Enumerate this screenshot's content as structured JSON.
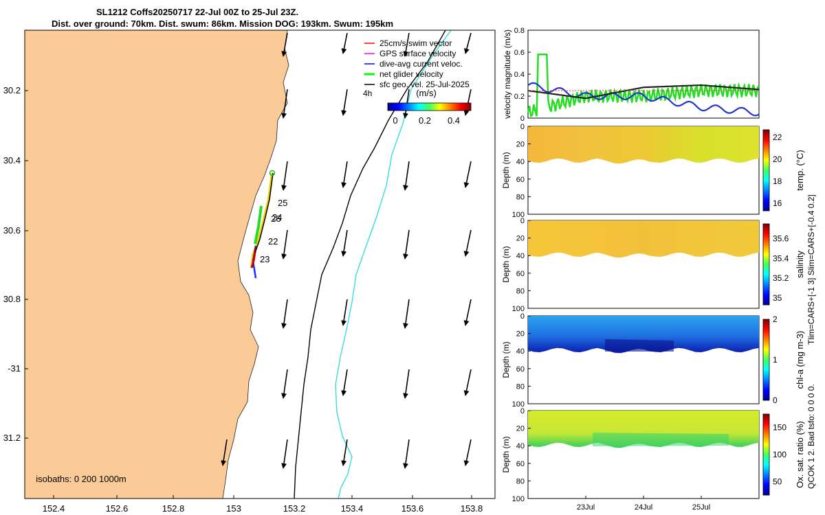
{
  "title_line1": "SL1212 Coffs20250717 22-Jul 00Z to 25-Jul 23Z.",
  "title_line2": "Dist. over ground: 70km. Dist. swum: 86km. Mission DOG: 193km. Swum: 195km",
  "map": {
    "lat_ticks": [
      "30.2",
      "30.4",
      "30.6",
      "30.8",
      "-31",
      "31.2"
    ],
    "lon_ticks": [
      "152.4",
      "152.6",
      "152.8",
      "153",
      "153.2",
      "153.4",
      "153.6",
      "153.8"
    ],
    "isobath_note": "isobaths: 0   200  1000m",
    "legend": [
      {
        "label": "25cm/s swim vector",
        "color": "#ff0000"
      },
      {
        "label": "GPS surface velocity",
        "color": "#ff00ff"
      },
      {
        "label": "dive-avg current veloc.",
        "color": "#0000ff"
      },
      {
        "label": "net glider velocity",
        "color": "#00ff00"
      },
      {
        "label": "sfc geo. vel. 25-Jul-2025",
        "color": "#000000"
      }
    ],
    "colorbar": {
      "label_4h": "4h",
      "units": "(m/s)",
      "ticks": [
        "0",
        "0.2",
        "0.4"
      ]
    },
    "day_labels": [
      "25",
      "24",
      "26",
      "22",
      "23"
    ],
    "colors": {
      "land": "#fbcb97",
      "isobath_200": "#000000",
      "isobath_1000": "#33dddd"
    }
  },
  "panels": {
    "velocity": {
      "ylabel": "velocity magnitude (m/s)",
      "yticks": [
        "0",
        "0.2",
        "0.4",
        "0.6",
        "0.8"
      ]
    },
    "temp": {
      "cb_label": "temp. (°C)",
      "cb_ticks": [
        "16",
        "18",
        "20",
        "22"
      ],
      "yticks": [
        "0",
        "20",
        "40",
        "60",
        "80",
        "100"
      ],
      "ylabel": "Depth (m)"
    },
    "salinity": {
      "cb_label": "salinity",
      "cb_ticks": [
        "35",
        "35.2",
        "35.4",
        "35.6"
      ],
      "yticks": [
        "0",
        "20",
        "40",
        "60",
        "80",
        "100"
      ],
      "ylabel": "Depth (m)"
    },
    "chla": {
      "cb_label": "chl-a  (mg m-3)",
      "cb_ticks": [
        "0",
        "1",
        "2"
      ],
      "yticks": [
        "0",
        "20",
        "40",
        "60",
        "80",
        "100"
      ],
      "ylabel": "Depth (m)"
    },
    "oxsat": {
      "cb_label": "Ox. sat. ratio (%)",
      "cb_ticks": [
        "50",
        "100",
        "150"
      ],
      "yticks": [
        "0",
        "20",
        "40",
        "60",
        "80",
        "100"
      ],
      "ylabel": "Depth (m)"
    },
    "xticks": [
      "23Jul",
      "24Jul",
      "25Jul"
    ],
    "side_note1": "Tlim=CARS+[-1 3] Slim=CARS+[-0.4 0.2]",
    "side_note2": "QCOK 1  2. Bad tsfo: 0  0  0  0."
  },
  "chart_data": {
    "type": "line",
    "title": "velocity magnitude",
    "x_days": [
      22,
      23,
      24,
      25,
      26
    ],
    "ylim": [
      0,
      0.8
    ],
    "series": [
      {
        "name": "net glider velocity",
        "values": [
          0.05,
          0.2,
          0.2,
          0.25,
          0.25
        ]
      },
      {
        "name": "dive-avg current veloc.",
        "values": [
          0.3,
          0.2,
          0.2,
          0.1,
          0.05
        ]
      },
      {
        "name": "sfc geo. vel.",
        "values": [
          0.25,
          0.18,
          0.28,
          0.3,
          0.26
        ]
      }
    ]
  }
}
